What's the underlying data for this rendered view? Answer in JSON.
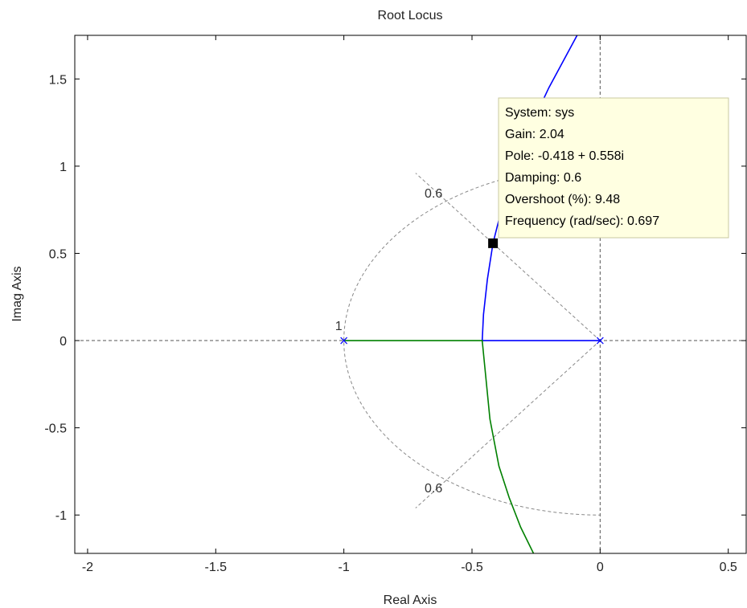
{
  "chart_data": {
    "type": "line",
    "title": "Root Locus",
    "xlabel": "Real Axis",
    "ylabel": "Imag Axis",
    "xlim": [
      -2.05,
      0.57
    ],
    "ylim": [
      -1.22,
      1.75
    ],
    "x_ticks": [
      {
        "value": -2,
        "label": "-2"
      },
      {
        "value": -1.5,
        "label": "-1.5"
      },
      {
        "value": -1,
        "label": "-1"
      },
      {
        "value": -0.5,
        "label": "-0.5"
      },
      {
        "value": 0,
        "label": "0"
      },
      {
        "value": 0.5,
        "label": "0.5"
      }
    ],
    "y_ticks": [
      {
        "value": 1.5,
        "label": "1.5"
      },
      {
        "value": 1,
        "label": "1"
      },
      {
        "value": 0.5,
        "label": "0.5"
      },
      {
        "value": 0,
        "label": "0"
      },
      {
        "value": -0.5,
        "label": "-0.5"
      },
      {
        "value": -1,
        "label": "-1"
      }
    ],
    "series": [
      {
        "color": "#0000ff",
        "points": [
          [
            0,
            0
          ],
          [
            -0.46,
            0
          ],
          [
            -0.455,
            0.15
          ],
          [
            -0.44,
            0.35
          ],
          [
            -0.418,
            0.558
          ],
          [
            -0.38,
            0.78
          ],
          [
            -0.34,
            0.95
          ],
          [
            -0.28,
            1.2
          ],
          [
            -0.2,
            1.45
          ],
          [
            -0.09,
            1.75
          ]
        ]
      },
      {
        "color": "#008000",
        "points": [
          [
            -1,
            0
          ],
          [
            -0.46,
            0
          ],
          [
            -0.45,
            -0.15
          ],
          [
            -0.43,
            -0.45
          ],
          [
            -0.395,
            -0.72
          ],
          [
            -0.355,
            -0.9
          ],
          [
            -0.31,
            -1.07
          ],
          [
            -0.26,
            -1.22
          ]
        ]
      }
    ],
    "poles": [
      [
        0,
        0
      ],
      [
        -1,
        0
      ]
    ],
    "grid": {
      "damping": 0.6,
      "natural_frequency": 1,
      "labels": [
        {
          "text": "0.6",
          "x": -0.65,
          "y": 0.82
        },
        {
          "text": "0.6",
          "x": -0.65,
          "y": -0.87
        },
        {
          "text": "1",
          "x": -1.02,
          "y": 0.06
        }
      ]
    },
    "selected_point": {
      "x": -0.418,
      "y": 0.558
    },
    "datatip": [
      "System: sys",
      "Gain: 2.04",
      "Pole: -0.418 + 0.558i",
      "Damping: 0.6",
      "Overshoot (%): 9.48",
      "Frequency (rad/sec): 0.697"
    ]
  }
}
